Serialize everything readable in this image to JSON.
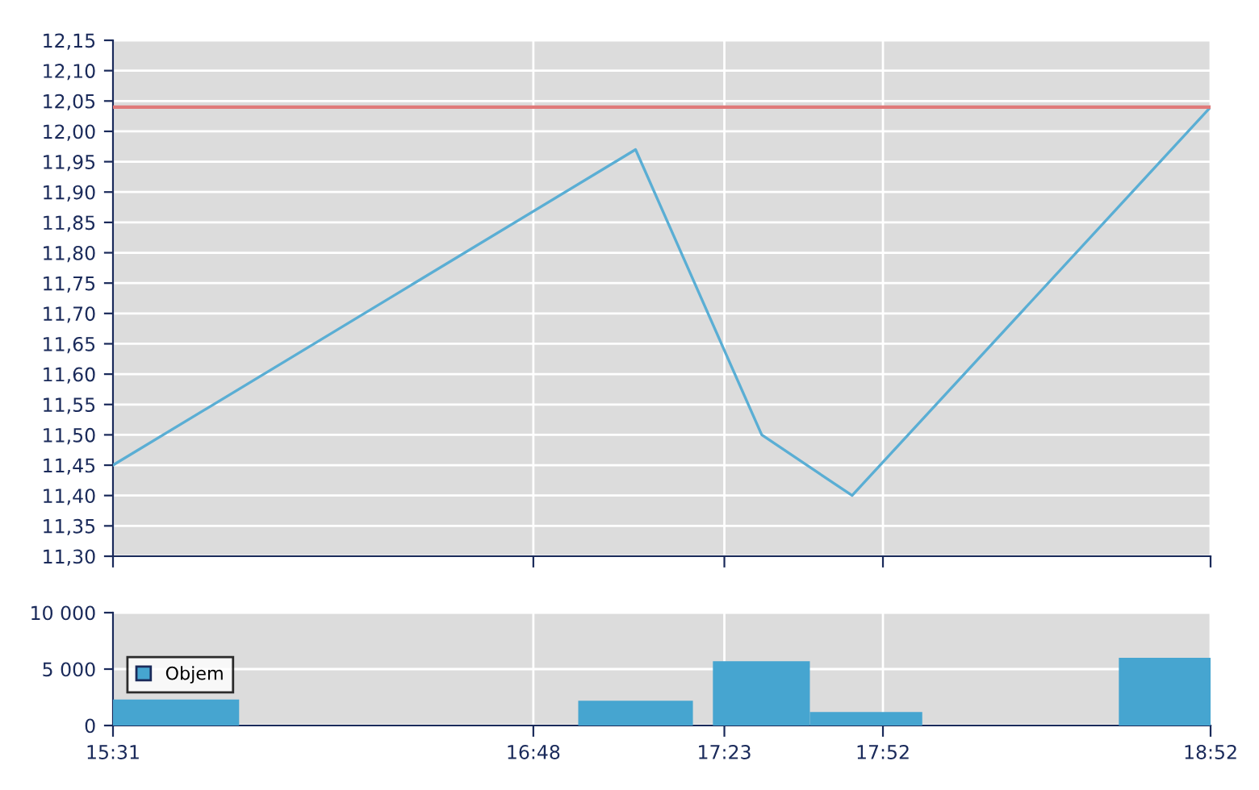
{
  "chart_data": [
    {
      "type": "line",
      "x": [
        15.517,
        17.112,
        17.497,
        17.773,
        18.867
      ],
      "series": [
        {
          "color": "#5aaed4",
          "values": [
            11.45,
            11.97,
            11.5,
            11.4,
            12.04
          ]
        }
      ],
      "xlim": [
        15.517,
        18.867
      ],
      "ylim": [
        11.3,
        12.15
      ],
      "yticks": [
        {
          "value": 11.3,
          "label": "11,30"
        },
        {
          "value": 11.35,
          "label": "11,35"
        },
        {
          "value": 11.4,
          "label": "11,40"
        },
        {
          "value": 11.45,
          "label": "11,45"
        },
        {
          "value": 11.5,
          "label": "11,50"
        },
        {
          "value": 11.55,
          "label": "11,55"
        },
        {
          "value": 11.6,
          "label": "11,60"
        },
        {
          "value": 11.65,
          "label": "11,65"
        },
        {
          "value": 11.7,
          "label": "11,70"
        },
        {
          "value": 11.75,
          "label": "11,75"
        },
        {
          "value": 11.8,
          "label": "11,80"
        },
        {
          "value": 11.85,
          "label": "11,85"
        },
        {
          "value": 11.9,
          "label": "11,90"
        },
        {
          "value": 11.95,
          "label": "11,95"
        },
        {
          "value": 12.0,
          "label": "12,00"
        },
        {
          "value": 12.05,
          "label": "12,05"
        },
        {
          "value": 12.1,
          "label": "12,10"
        },
        {
          "value": 12.15,
          "label": "12,15"
        }
      ],
      "ref_lines": [
        {
          "axis": "y",
          "value": 12.04,
          "color": "#e07a7a"
        }
      ],
      "grid": true,
      "tick_labels": "y",
      "legend": false
    },
    {
      "type": "histogram",
      "bins": [
        15.517,
        15.902,
        16.937,
        17.287,
        17.348,
        17.644,
        17.987,
        18.587,
        18.867
      ],
      "series": [
        {
          "name": "Objem",
          "color": "#46a5d0",
          "values": [
            2300,
            0,
            2200,
            0,
            5700,
            1200,
            0,
            6000
          ]
        }
      ],
      "xlim": [
        15.517,
        18.867
      ],
      "xticks": [
        {
          "value": 15.517,
          "label": "15:31"
        },
        {
          "value": 16.8,
          "label": "16:48"
        },
        {
          "value": 17.383,
          "label": "17:23"
        },
        {
          "value": 17.867,
          "label": "17:52"
        },
        {
          "value": 18.867,
          "label": "18:52"
        }
      ],
      "ylim": [
        0,
        10000
      ],
      "yticks": [
        {
          "value": 0,
          "label": "0"
        },
        {
          "value": 5000,
          "label": "5 000"
        },
        {
          "value": 10000,
          "label": "10 000"
        }
      ],
      "grid": true,
      "legend": "left"
    }
  ]
}
